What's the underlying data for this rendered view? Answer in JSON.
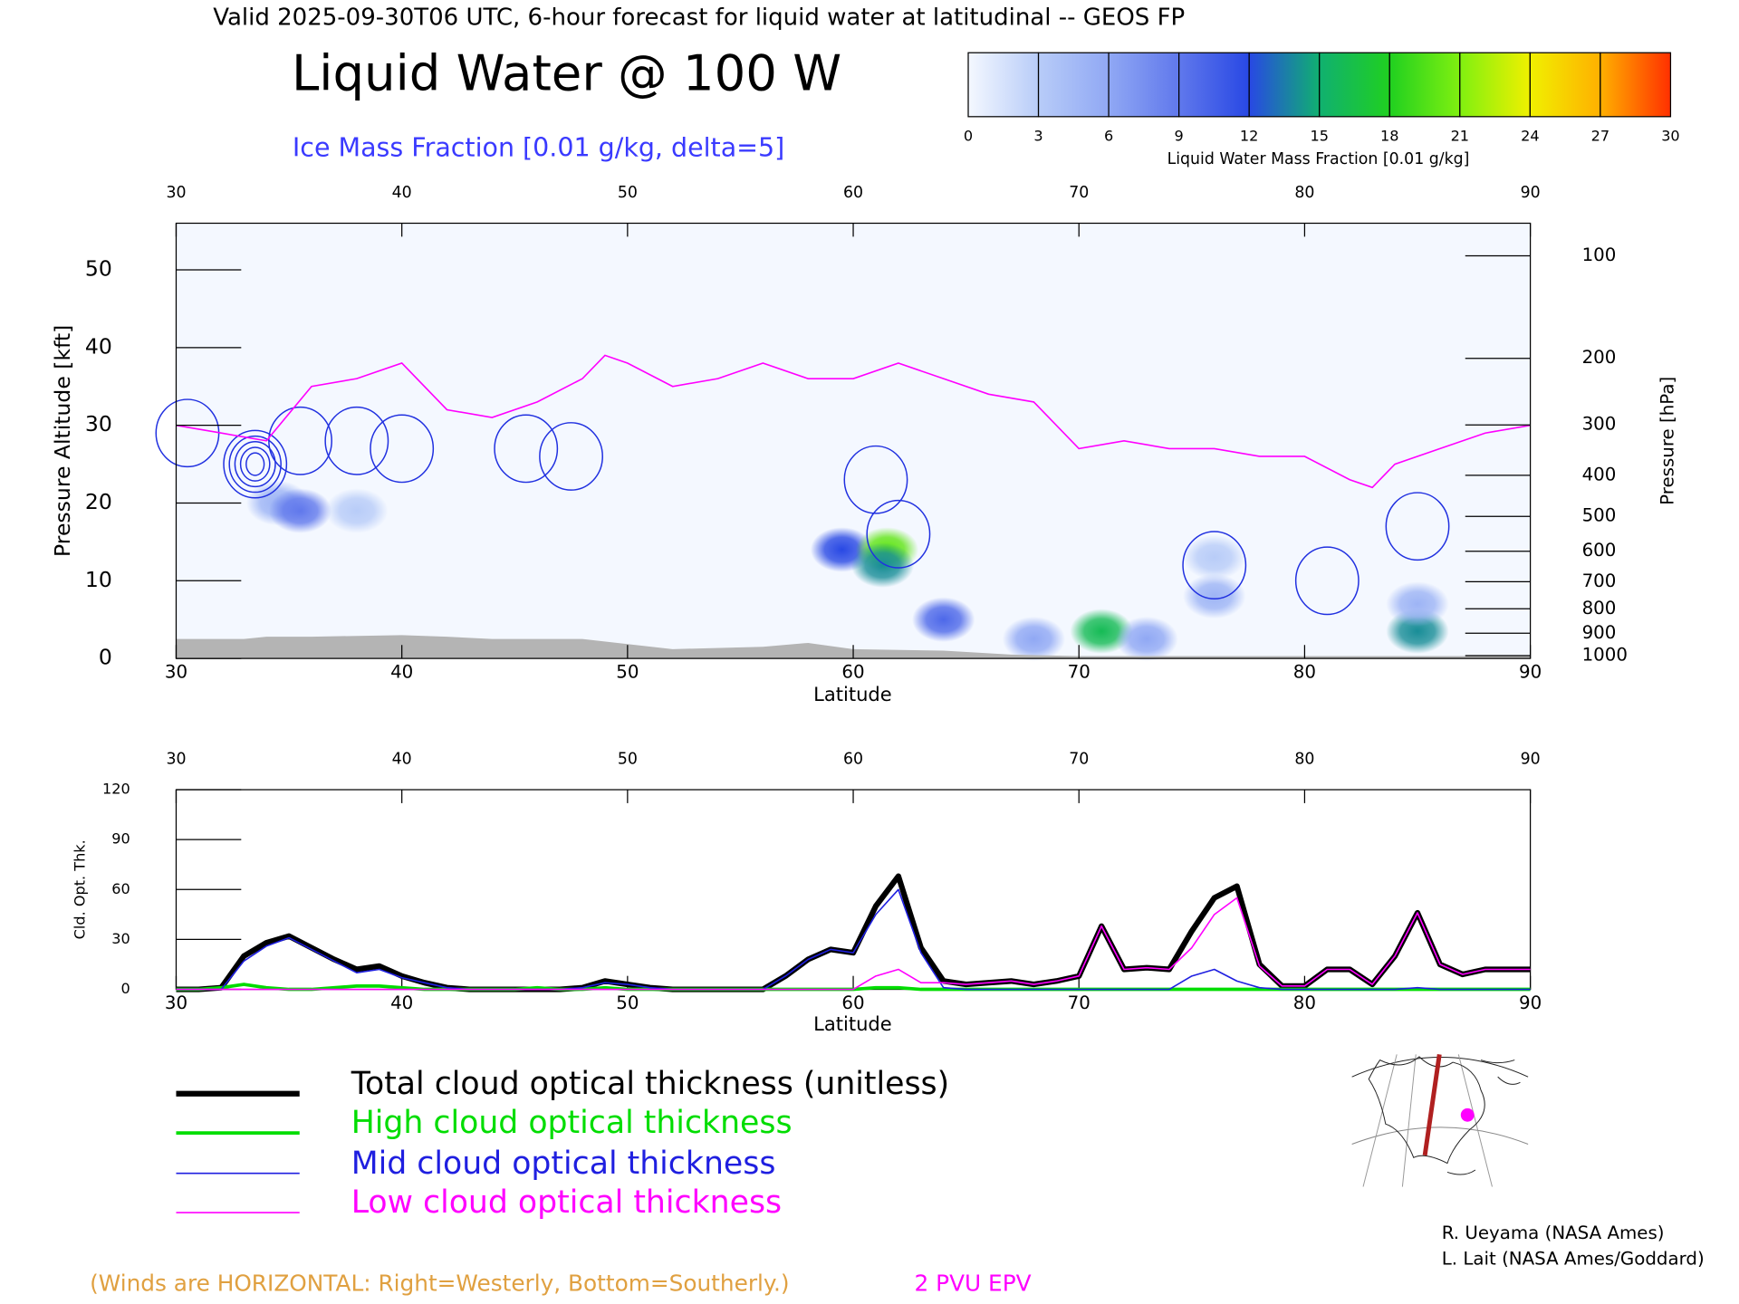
{
  "header": {
    "title": "Valid 2025-09-30T06 UTC, 6-hour forecast for liquid water at latitudinal -- GEOS FP"
  },
  "chart_data": [
    {
      "type": "contour",
      "title": "Liquid Water @ 100 W",
      "subtitle": "Ice Mass Fraction [0.01 g/kg, delta=5]",
      "x_label": "Latitude",
      "y_label": "Pressure Altitude [kft]",
      "y2_label": "Pressure [hPa]",
      "xlim": [
        30,
        90
      ],
      "xticks": [
        30,
        40,
        50,
        60,
        70,
        80,
        90
      ],
      "ylim": [
        0,
        56
      ],
      "yticks": [
        0,
        10,
        20,
        30,
        40,
        50
      ],
      "y2ticks": [
        100,
        200,
        300,
        400,
        500,
        600,
        700,
        800,
        900,
        1000
      ],
      "colorbar": {
        "label": "Liquid Water Mass Fraction [0.01 g/kg]",
        "ticks": [
          0,
          3,
          6,
          9,
          12,
          15,
          18,
          21,
          24,
          27,
          30
        ],
        "colors": [
          "#f4f8ff",
          "#b8ccf8",
          "#90a8f4",
          "#6078ec",
          "#2848e4",
          "#10b070",
          "#20d020",
          "#80f010",
          "#f0f000",
          "#ffb000",
          "#ff3000"
        ]
      },
      "liquid_water": {
        "x": [
          34.5,
          35.5,
          38,
          59.5,
          61.5,
          61.3,
          64,
          68,
          71,
          73,
          76,
          76,
          85,
          85
        ],
        "y": [
          20,
          19,
          19,
          14,
          14,
          12,
          5,
          2.5,
          3.5,
          2.5,
          8,
          13,
          3.5,
          7
        ],
        "values": [
          5,
          9,
          3,
          12,
          20,
          14,
          10,
          6,
          16,
          6,
          5,
          3,
          14,
          5
        ]
      },
      "ice_mass_fraction": {
        "color": "#2030e0",
        "x": [
          30.5,
          33.5,
          35.5,
          38,
          40,
          45.5,
          47.5,
          61,
          62,
          76,
          81,
          85
        ],
        "y": [
          29,
          25,
          28,
          28,
          27,
          27,
          26,
          23,
          16,
          12,
          10,
          17
        ],
        "values": [
          5,
          25,
          5,
          5,
          5,
          5,
          5,
          5,
          5,
          5,
          5,
          5
        ]
      },
      "epv": {
        "name": "2 PVU EPV",
        "color": "#ff00ff",
        "x": [
          30,
          32,
          34,
          36,
          38,
          40,
          42,
          44,
          46,
          48,
          49,
          50,
          52,
          54,
          56,
          58,
          60,
          62,
          64,
          66,
          68,
          70,
          72,
          74,
          76,
          78,
          80,
          82,
          83,
          84,
          86,
          88,
          90
        ],
        "values": [
          30,
          29,
          28,
          35,
          36,
          38,
          32,
          31,
          33,
          36,
          39,
          38,
          35,
          36,
          38,
          36,
          36,
          38,
          36,
          34,
          33,
          27,
          28,
          27,
          27,
          26,
          26,
          23,
          22,
          25,
          27,
          29,
          30
        ]
      },
      "surface": {
        "color": "#b4b4b4",
        "x": [
          30,
          33,
          34,
          36,
          40,
          42,
          44,
          48,
          52,
          56,
          58,
          60,
          64,
          67,
          70,
          80,
          90
        ],
        "values": [
          2.5,
          2.5,
          2.8,
          2.8,
          3,
          2.8,
          2.5,
          2.5,
          1.2,
          1.5,
          2,
          1.2,
          1,
          0.5,
          0.3,
          0.3,
          0.3
        ]
      }
    },
    {
      "type": "line",
      "x_label": "Latitude",
      "y_label": "Cld. Opt. Thk.",
      "xlim": [
        30,
        90
      ],
      "xticks": [
        30,
        40,
        50,
        60,
        70,
        80,
        90
      ],
      "ylim": [
        0,
        120
      ],
      "yticks": [
        0,
        30,
        60,
        90,
        120
      ],
      "x": [
        30,
        31,
        32,
        33,
        34,
        35,
        36,
        37,
        38,
        39,
        40,
        41,
        42,
        43,
        44,
        45,
        46,
        47,
        48,
        49,
        50,
        51,
        52,
        53,
        54,
        55,
        56,
        57,
        58,
        59,
        60,
        61,
        62,
        63,
        64,
        65,
        66,
        67,
        68,
        69,
        70,
        71,
        72,
        73,
        74,
        75,
        76,
        77,
        78,
        79,
        80,
        81,
        82,
        83,
        84,
        85,
        86,
        87,
        88,
        89,
        90
      ],
      "series": [
        {
          "name": "Total cloud optical thickness (unitless)",
          "color": "#000000",
          "values": [
            0,
            0,
            1,
            20,
            28,
            32,
            25,
            18,
            12,
            14,
            8,
            4,
            1,
            0,
            0,
            0,
            0,
            0,
            1,
            5,
            3,
            1,
            0,
            0,
            0,
            0,
            0,
            8,
            18,
            24,
            22,
            50,
            68,
            25,
            5,
            3,
            4,
            5,
            3,
            5,
            8,
            38,
            12,
            13,
            12,
            35,
            55,
            62,
            15,
            2,
            2,
            12,
            12,
            3,
            20,
            46,
            15,
            9,
            12,
            12,
            12
          ]
        },
        {
          "name": "High cloud optical thickness",
          "color": "#00dd00",
          "values": [
            0,
            0,
            1,
            3,
            1,
            0,
            0,
            1,
            2,
            2,
            1,
            0,
            0,
            0,
            0,
            0,
            1,
            0,
            0,
            1,
            0,
            0,
            0,
            0,
            0,
            0,
            0,
            0,
            0,
            0,
            0,
            1,
            1,
            0,
            0,
            0,
            0,
            0,
            0,
            0,
            0,
            0,
            0,
            0,
            0,
            0,
            0,
            0,
            0,
            0,
            0,
            0,
            0,
            0,
            0,
            0,
            0,
            0,
            0,
            0,
            0
          ]
        },
        {
          "name": "Mid cloud optical thickness",
          "color": "#1f1fe0",
          "values": [
            0,
            0,
            0,
            17,
            26,
            31,
            24,
            17,
            10,
            12,
            7,
            4,
            1,
            0,
            0,
            0,
            0,
            0,
            1,
            4,
            3,
            1,
            0,
            0,
            0,
            0,
            0,
            8,
            18,
            24,
            22,
            45,
            60,
            22,
            1,
            0,
            0,
            0,
            0,
            0,
            0,
            0,
            0,
            0,
            0,
            8,
            12,
            5,
            1,
            0,
            0,
            0,
            0,
            0,
            0,
            1,
            0,
            0,
            0,
            0,
            0
          ]
        },
        {
          "name": "Low cloud optical thickness",
          "color": "#ff00ff",
          "values": [
            0,
            0,
            0,
            0,
            0,
            0,
            0,
            0,
            0,
            0,
            0,
            0,
            0,
            0,
            0,
            0,
            0,
            0,
            0,
            0,
            0,
            0,
            0,
            0,
            0,
            0,
            0,
            0,
            0,
            0,
            0,
            8,
            12,
            4,
            4,
            3,
            4,
            5,
            3,
            5,
            8,
            38,
            12,
            13,
            12,
            25,
            45,
            55,
            14,
            2,
            2,
            12,
            12,
            3,
            20,
            46,
            15,
            9,
            12,
            12,
            12
          ]
        }
      ]
    }
  ],
  "footer": {
    "winds": "(Winds are HORIZONTAL: Right=Westerly, Bottom=Southerly.)",
    "credits": [
      "R. Ueyama (NASA Ames)",
      "L. Lait (NASA Ames/Goddard)"
    ]
  }
}
